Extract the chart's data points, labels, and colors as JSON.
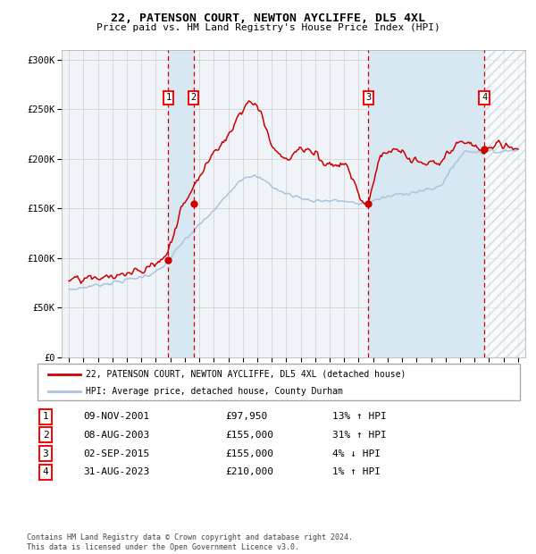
{
  "title": "22, PATENSON COURT, NEWTON AYCLIFFE, DL5 4XL",
  "subtitle": "Price paid vs. HM Land Registry's House Price Index (HPI)",
  "legend_line1": "22, PATENSON COURT, NEWTON AYCLIFFE, DL5 4XL (detached house)",
  "legend_line2": "HPI: Average price, detached house, County Durham",
  "footer": "Contains HM Land Registry data © Crown copyright and database right 2024.\nThis data is licensed under the Open Government Licence v3.0.",
  "sales": [
    {
      "num": 1,
      "date": "09-NOV-2001",
      "price": 97950,
      "pct": "13%",
      "dir": "↑",
      "x_year": 2001.86
    },
    {
      "num": 2,
      "date": "08-AUG-2003",
      "price": 155000,
      "pct": "31%",
      "dir": "↑",
      "x_year": 2003.6
    },
    {
      "num": 3,
      "date": "02-SEP-2015",
      "price": 155000,
      "pct": "4%",
      "dir": "↓",
      "x_year": 2015.67
    },
    {
      "num": 4,
      "date": "31-AUG-2023",
      "price": 210000,
      "pct": "1%",
      "dir": "↑",
      "x_year": 2023.67
    }
  ],
  "hpi_color": "#aac4dd",
  "price_color": "#cc0000",
  "sale_dot_color": "#cc0000",
  "vline_color": "#cc0000",
  "shade_color": "#d8e8f3",
  "background_color": "#f0f4f8",
  "grid_color": "#cccccc",
  "ylim": [
    0,
    310000
  ],
  "xlim": [
    1994.5,
    2026.5
  ],
  "yticks": [
    0,
    50000,
    100000,
    150000,
    200000,
    250000,
    300000
  ],
  "ytick_labels": [
    "£0",
    "£50K",
    "£100K",
    "£150K",
    "£200K",
    "£250K",
    "£300K"
  ],
  "xticks": [
    1995,
    1996,
    1997,
    1998,
    1999,
    2000,
    2001,
    2002,
    2003,
    2004,
    2005,
    2006,
    2007,
    2008,
    2009,
    2010,
    2011,
    2012,
    2013,
    2014,
    2015,
    2016,
    2017,
    2018,
    2019,
    2020,
    2021,
    2022,
    2023,
    2024,
    2025,
    2026
  ]
}
